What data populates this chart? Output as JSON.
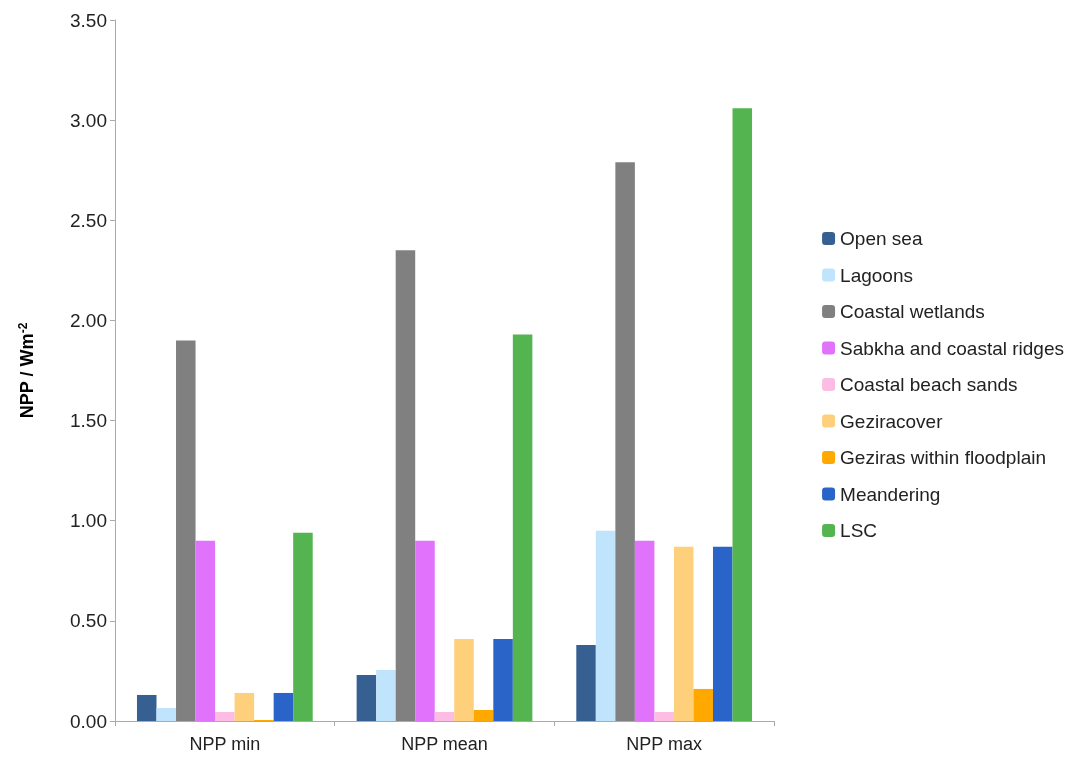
{
  "chart_data": {
    "type": "bar",
    "ylabel": "NPP / Wm$^{-2}$",
    "categories": [
      "NPP min",
      "NPP mean",
      "NPP max"
    ],
    "series": [
      {
        "name": "Open sea",
        "color": "#366092",
        "values": [
          0.13,
          0.23,
          0.38
        ]
      },
      {
        "name": "Lagoons",
        "color": "#c0e4fc",
        "values": [
          0.065,
          0.255,
          0.95
        ]
      },
      {
        "name": "Coastal wetlands",
        "color": "#808080",
        "values": [
          1.9,
          2.35,
          2.79
        ]
      },
      {
        "name": "Sabkha and coastal ridges",
        "color": "#e072fc",
        "values": [
          0.9,
          0.9,
          0.9
        ]
      },
      {
        "name": "Coastal beach sands",
        "color": "#fcbce4",
        "values": [
          0.045,
          0.045,
          0.045
        ]
      },
      {
        "name": "Geziracover",
        "color": "#ffd07c",
        "values": [
          0.14,
          0.41,
          0.87
        ]
      },
      {
        "name": "Geziras within floodplain",
        "color": "#ffa800",
        "values": [
          0.005,
          0.055,
          0.16
        ]
      },
      {
        "name": "Meandering",
        "color": "#2a64c8",
        "values": [
          0.14,
          0.41,
          0.87
        ]
      },
      {
        "name": "LSC",
        "color": "#54b450",
        "values": [
          0.94,
          1.93,
          3.06
        ]
      }
    ],
    "ylim": [
      0,
      3.5
    ],
    "yticks": [
      {
        "value": 0,
        "label": "0.00"
      },
      {
        "value": 0.5,
        "label": "0.50"
      },
      {
        "value": 1,
        "label": "1.00"
      },
      {
        "value": 1.5,
        "label": "1.50"
      },
      {
        "value": 2,
        "label": "2.00"
      },
      {
        "value": 2.5,
        "label": "2.50"
      },
      {
        "value": 3,
        "label": "3.00"
      },
      {
        "value": 3.5,
        "label": "3.50"
      }
    ],
    "grid": false,
    "legend": "right"
  }
}
